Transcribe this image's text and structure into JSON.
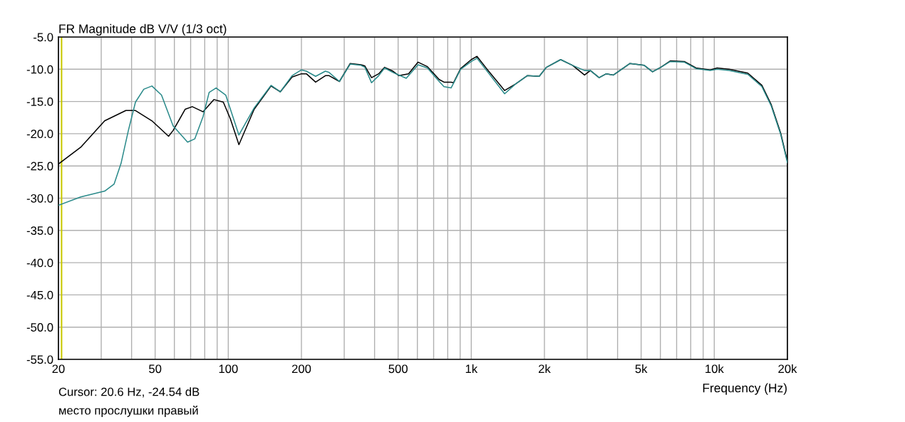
{
  "chart_data": {
    "type": "line",
    "title": "FR Magnitude dB V/V (1/3 oct)",
    "xlabel": "Frequency (Hz)",
    "annotations": [
      "Cursor: 20.6 Hz, -24.54 dB",
      "место прослушки правый"
    ],
    "log": "x",
    "grid": true,
    "line_style": "solid",
    "marker": "none",
    "xlim": [
      20,
      20000
    ],
    "ylim": [
      -55,
      -5
    ],
    "xticks": [
      20,
      50,
      100,
      200,
      500,
      {
        "value": 1000,
        "label": "1k"
      },
      {
        "value": 2000,
        "label": "2k"
      },
      {
        "value": 5000,
        "label": "5k"
      },
      {
        "value": 10000,
        "label": "10k"
      },
      {
        "value": 20000,
        "label": "20k"
      },
      {
        "value": 30,
        "label": null
      },
      {
        "value": 40,
        "label": null
      },
      {
        "value": 60,
        "label": null
      },
      {
        "value": 70,
        "label": null
      },
      {
        "value": 80,
        "label": null
      },
      {
        "value": 90,
        "label": null
      },
      {
        "value": 300,
        "label": null
      },
      {
        "value": 400,
        "label": null
      },
      {
        "value": 600,
        "label": null
      },
      {
        "value": 700,
        "label": null
      },
      {
        "value": 800,
        "label": null
      },
      {
        "value": 900,
        "label": null
      },
      {
        "value": 3000,
        "label": null
      },
      {
        "value": 4000,
        "label": null
      },
      {
        "value": 6000,
        "label": null
      },
      {
        "value": 7000,
        "label": null
      },
      {
        "value": 8000,
        "label": null
      },
      {
        "value": 9000,
        "label": null
      }
    ],
    "yticks": [
      {
        "value": -5,
        "label": "-5.0"
      },
      {
        "value": -10,
        "label": "-10.0"
      },
      {
        "value": -15,
        "label": "-15.0"
      },
      {
        "value": -20,
        "label": "-20.0"
      },
      {
        "value": -25,
        "label": "-25.0"
      },
      {
        "value": -30,
        "label": "-30.0"
      },
      {
        "value": -35,
        "label": "-35.0"
      },
      {
        "value": -40,
        "label": "-40.0"
      },
      {
        "value": -45,
        "label": "-45.0"
      },
      {
        "value": -50,
        "label": "-50.0"
      },
      {
        "value": -55,
        "label": "-55.0"
      }
    ],
    "ref_lines": [
      {
        "axis": "x",
        "value": 20.6,
        "color": "#c8c800"
      }
    ],
    "series": [
      {
        "color": "#000000",
        "x": [
          20,
          24.7,
          31,
          37.9,
          41.5,
          48.5,
          56.8,
          59.3,
          66.5,
          71.1,
          78.8,
          87.2,
          95.4,
          102,
          110.6,
          127.8,
          150,
          163.8,
          183,
          200,
          209.6,
          228.8,
          251,
          260,
          286.7,
          317.6,
          352,
          365,
          388.8,
          416,
          440,
          476,
          504,
          552,
          604,
          660,
          738,
          772,
          826,
          845,
          904,
          1000,
          1056,
          1156,
          1372,
          1520,
          1700,
          1904,
          2038,
          2332,
          2612,
          2924,
          3092,
          3358,
          3594,
          3846,
          4500,
          5150,
          5570,
          6020,
          6592,
          7530,
          8414,
          9620,
          10280,
          11500,
          13740,
          15700,
          17160,
          18760,
          20000
        ],
        "values": [
          -24.7,
          -22.1,
          -18.0,
          -16.4,
          -16.4,
          -18.0,
          -20.4,
          -19.5,
          -16.2,
          -15.8,
          -16.6,
          -14.7,
          -15.1,
          -17.7,
          -21.7,
          -16.2,
          -12.6,
          -13.5,
          -11.2,
          -10.7,
          -10.7,
          -12.0,
          -11.0,
          -11.0,
          -11.9,
          -9.1,
          -9.3,
          -9.5,
          -11.3,
          -10.7,
          -9.7,
          -10.3,
          -11.0,
          -10.7,
          -8.9,
          -9.6,
          -11.6,
          -12.0,
          -12.0,
          -12.1,
          -9.9,
          -8.5,
          -8.0,
          -9.9,
          -13.3,
          -12.3,
          -11.0,
          -11.1,
          -9.7,
          -8.5,
          -9.4,
          -10.9,
          -10.2,
          -11.3,
          -10.7,
          -10.9,
          -9.1,
          -9.4,
          -10.4,
          -9.7,
          -8.7,
          -8.8,
          -9.8,
          -10.1,
          -9.8,
          -10.0,
          -10.6,
          -12.5,
          -15.5,
          -19.9,
          -24.3
        ]
      },
      {
        "color": "#2a8a8a",
        "x": [
          20,
          24.7,
          31,
          33.9,
          36.2,
          38.8,
          41.5,
          44.9,
          48.5,
          53.1,
          59.3,
          68,
          72.8,
          78.8,
          83.4,
          89.1,
          97.6,
          110.6,
          127.8,
          150,
          163.8,
          183,
          200,
          209.6,
          228.8,
          251,
          260,
          286.7,
          317.6,
          352,
          365,
          388.8,
          416,
          440,
          476,
          504,
          540,
          604,
          660,
          738,
          772,
          826,
          904,
          1000,
          1056,
          1156,
          1372,
          1520,
          1700,
          1904,
          2038,
          2332,
          2612,
          2924,
          3092,
          3358,
          3594,
          3846,
          4500,
          5150,
          5570,
          6020,
          6592,
          7530,
          8414,
          9620,
          10280,
          11500,
          13740,
          15700,
          17160,
          18760,
          20000
        ],
        "values": [
          -31.1,
          -29.8,
          -28.9,
          -27.8,
          -24.6,
          -19.5,
          -15.1,
          -13.1,
          -12.6,
          -14.0,
          -18.8,
          -21.3,
          -20.8,
          -17.3,
          -13.6,
          -12.9,
          -14.0,
          -20.2,
          -16.0,
          -12.5,
          -13.5,
          -11.0,
          -10.1,
          -10.3,
          -11.1,
          -10.3,
          -10.5,
          -11.9,
          -9.2,
          -9.4,
          -9.7,
          -12.1,
          -11.0,
          -9.8,
          -10.5,
          -10.9,
          -11.4,
          -9.3,
          -9.8,
          -11.9,
          -12.7,
          -12.9,
          -10.0,
          -8.8,
          -8.3,
          -10.2,
          -13.8,
          -12.3,
          -11.0,
          -11.1,
          -9.7,
          -8.5,
          -9.4,
          -10.2,
          -10.2,
          -11.3,
          -10.7,
          -10.9,
          -9.1,
          -9.4,
          -10.4,
          -9.7,
          -8.8,
          -8.9,
          -9.9,
          -10.2,
          -10.0,
          -10.2,
          -10.8,
          -12.7,
          -15.7,
          -20.1,
          -24.5
        ]
      }
    ]
  }
}
